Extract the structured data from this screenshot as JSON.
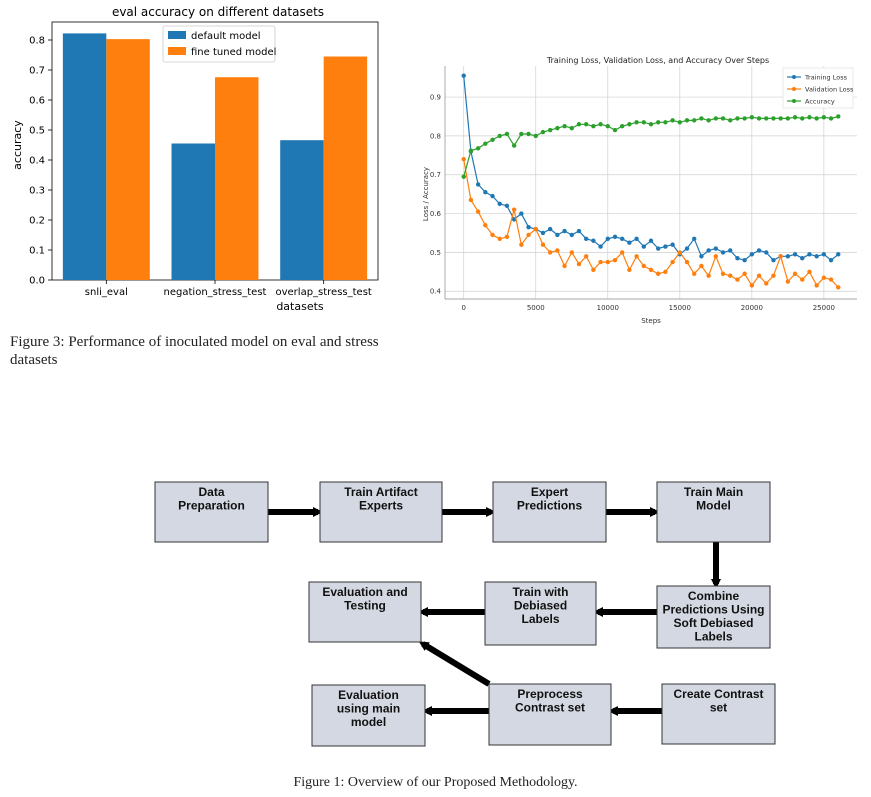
{
  "chart_data": [
    {
      "type": "bar",
      "title": "eval accuracy on different datasets",
      "xlabel": "datasets",
      "ylabel": "accuracy",
      "categories": [
        "snli_eval",
        "negation_stress_test",
        "overlap_stress_test"
      ],
      "series": [
        {
          "name": "default model",
          "color": "#1f77b4",
          "values": [
            0.822,
            0.455,
            0.466
          ]
        },
        {
          "name": "fine tuned model",
          "color": "#ff7f0e",
          "values": [
            0.803,
            0.676,
            0.745
          ]
        }
      ],
      "ylim": [
        0,
        0.86
      ],
      "yticks": [
        "0.0",
        "0.1",
        "0.2",
        "0.3",
        "0.4",
        "0.5",
        "0.6",
        "0.7",
        "0.8"
      ],
      "legend_position": "top-center",
      "grid": false
    },
    {
      "type": "line",
      "title": "Training Loss, Validation Loss, and Accuracy Over Steps",
      "xlabel": "Steps",
      "ylabel": "Loss / Accuracy",
      "xlim": [
        -1300,
        27300
      ],
      "ylim": [
        0.38,
        0.98
      ],
      "xticks": [
        "0",
        "5000",
        "10000",
        "15000",
        "20000",
        "25000"
      ],
      "yticks": [
        "0.4",
        "0.5",
        "0.6",
        "0.7",
        "0.8",
        "0.9"
      ],
      "grid": true,
      "legend_position": "top-right",
      "x": [
        0,
        500,
        1000,
        1500,
        2000,
        2500,
        3000,
        3500,
        4000,
        4500,
        5000,
        5500,
        6000,
        6500,
        7000,
        7500,
        8000,
        8500,
        9000,
        9500,
        10000,
        10500,
        11000,
        11500,
        12000,
        12500,
        13000,
        13500,
        14000,
        14500,
        15000,
        15500,
        16000,
        16500,
        17000,
        17500,
        18000,
        18500,
        19000,
        19500,
        20000,
        20500,
        21000,
        21500,
        22000,
        22500,
        23000,
        23500,
        24000,
        24500,
        25000,
        25500,
        26000
      ],
      "series": [
        {
          "name": "Training Loss",
          "color": "#1f77b4",
          "values": [
            0.955,
            0.76,
            0.675,
            0.655,
            0.645,
            0.625,
            0.62,
            0.585,
            0.6,
            0.565,
            0.56,
            0.55,
            0.56,
            0.545,
            0.555,
            0.545,
            0.555,
            0.535,
            0.53,
            0.515,
            0.535,
            0.54,
            0.535,
            0.525,
            0.535,
            0.515,
            0.53,
            0.51,
            0.515,
            0.52,
            0.495,
            0.51,
            0.535,
            0.49,
            0.505,
            0.51,
            0.5,
            0.505,
            0.485,
            0.48,
            0.495,
            0.505,
            0.5,
            0.48,
            0.49,
            0.49,
            0.495,
            0.485,
            0.495,
            0.49,
            0.495,
            0.48,
            0.495
          ]
        },
        {
          "name": "Validation Loss",
          "color": "#ff7f0e",
          "values": [
            0.74,
            0.635,
            0.605,
            0.57,
            0.545,
            0.535,
            0.54,
            0.61,
            0.52,
            0.545,
            0.56,
            0.52,
            0.5,
            0.505,
            0.465,
            0.5,
            0.47,
            0.49,
            0.455,
            0.475,
            0.475,
            0.48,
            0.5,
            0.455,
            0.49,
            0.465,
            0.455,
            0.445,
            0.45,
            0.475,
            0.5,
            0.475,
            0.445,
            0.465,
            0.44,
            0.49,
            0.445,
            0.44,
            0.43,
            0.445,
            0.415,
            0.44,
            0.42,
            0.44,
            0.49,
            0.425,
            0.445,
            0.43,
            0.45,
            0.415,
            0.435,
            0.43,
            0.41
          ]
        },
        {
          "name": "Accuracy",
          "color": "#2ca02c",
          "values": [
            0.695,
            0.762,
            0.768,
            0.78,
            0.79,
            0.8,
            0.805,
            0.775,
            0.805,
            0.805,
            0.8,
            0.81,
            0.815,
            0.82,
            0.825,
            0.82,
            0.83,
            0.83,
            0.825,
            0.83,
            0.825,
            0.815,
            0.825,
            0.83,
            0.835,
            0.835,
            0.83,
            0.835,
            0.835,
            0.84,
            0.835,
            0.84,
            0.84,
            0.845,
            0.84,
            0.845,
            0.845,
            0.84,
            0.845,
            0.845,
            0.848,
            0.845,
            0.845,
            0.845,
            0.845,
            0.845,
            0.848,
            0.845,
            0.848,
            0.845,
            0.848,
            0.845,
            0.85
          ]
        }
      ]
    }
  ],
  "figure3": {
    "caption": "Figure 3: Performance of inoculated model on eval and stress datasets"
  },
  "figure1": {
    "caption": "Figure 1: Overview of our Proposed Methodology.",
    "boxes": {
      "data_prep": [
        "Data",
        "Preparation"
      ],
      "train_artifact": [
        "Train Artifact",
        "Experts"
      ],
      "expert_pred": [
        "Expert",
        "Predictions"
      ],
      "train_main": [
        "Train Main",
        "Model"
      ],
      "combine": [
        "Combine",
        "Predictions Using",
        "Soft Debiased",
        "Labels"
      ],
      "train_debiased": [
        "Train with",
        "Debiased",
        "Labels"
      ],
      "eval_testing": [
        "Evaluation and",
        "Testing"
      ],
      "create_contrast": [
        "Create Contrast",
        "set"
      ],
      "preprocess": [
        "Preprocess",
        "Contrast set"
      ],
      "eval_main": [
        "Evaluation",
        "using main",
        "model"
      ]
    }
  }
}
